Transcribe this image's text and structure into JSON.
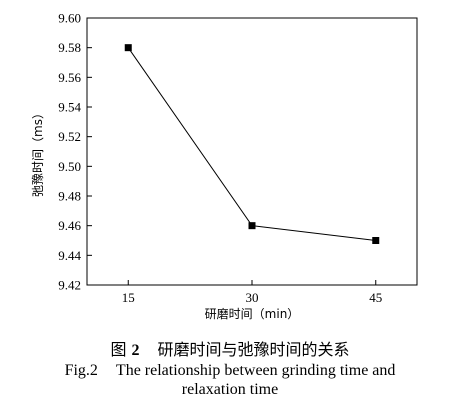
{
  "chart_data": {
    "type": "line",
    "x": [
      15,
      30,
      45
    ],
    "series": [
      {
        "values": [
          9.58,
          9.46,
          9.45
        ],
        "color": "#000000",
        "marker": "square"
      }
    ],
    "xlabel": "研磨时间（min）",
    "ylabel": "弛豫时间（ms）",
    "xlim": [
      10,
      50
    ],
    "ylim": [
      9.42,
      9.6
    ],
    "xticks": [
      "15",
      "30",
      "45"
    ],
    "yticks": [
      "9.42",
      "9.44",
      "9.46",
      "9.48",
      "9.50",
      "9.52",
      "9.54",
      "9.56",
      "9.58",
      "9.60"
    ],
    "grid": false,
    "legend": "none"
  },
  "caption": {
    "cn_prefix": "图",
    "cn_number": "2",
    "cn_text": "研磨时间与弛豫时间的关系",
    "en_prefix": "Fig.2",
    "en_line1": "The relationship between grinding time and",
    "en_line2": "relaxation time"
  }
}
